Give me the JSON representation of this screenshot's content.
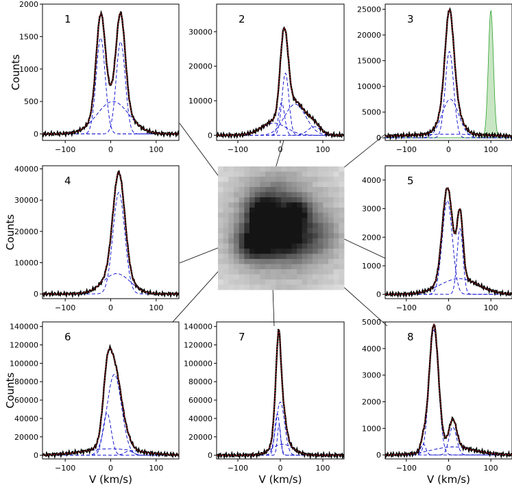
{
  "chart_data": [
    {
      "type": "line",
      "panel": "1",
      "ylabel": "Counts",
      "xlabel": "",
      "xlim": [
        -150,
        150
      ],
      "ylim": [
        -100,
        2000
      ],
      "xticks": [
        "-100",
        "0",
        "100"
      ],
      "yticks": [
        "0",
        "500",
        "1000",
        "1500",
        "2000"
      ],
      "components": [
        {
          "name": "",
          "type": "gaussian",
          "amplitude": 1480,
          "center": -22,
          "sigma": 10
        },
        {
          "name": "",
          "type": "gaussian",
          "amplitude": 1420,
          "center": 22,
          "sigma": 10
        },
        {
          "name": "",
          "type": "gaussian",
          "amplitude": 500,
          "center": 5,
          "sigma": 35
        }
      ]
    },
    {
      "type": "line",
      "panel": "2",
      "ylabel": "",
      "xlabel": "",
      "xlim": [
        -150,
        150
      ],
      "ylim": [
        -1500,
        38000
      ],
      "xticks": [
        "-100",
        "0",
        "100"
      ],
      "yticks": [
        "0",
        "10000",
        "20000",
        "30000"
      ],
      "components": [
        {
          "name": "",
          "type": "gaussian",
          "amplitude": 18000,
          "center": 12,
          "sigma": 8
        },
        {
          "name": "",
          "type": "gaussian",
          "amplitude": 9500,
          "center": 3,
          "sigma": 7
        },
        {
          "name": "",
          "type": "gaussian",
          "amplitude": 9000,
          "center": 35,
          "sigma": 25
        },
        {
          "name": "",
          "type": "gaussian",
          "amplitude": 3500,
          "center": -15,
          "sigma": 30
        },
        {
          "name": "",
          "type": "gaussian",
          "amplitude": 2500,
          "center": 80,
          "sigma": 15
        }
      ]
    },
    {
      "type": "line",
      "panel": "3",
      "ylabel": "",
      "xlabel": "",
      "xlim": [
        -150,
        150
      ],
      "ylim": [
        -500,
        26000
      ],
      "xticks": [
        "-100",
        "0",
        "100"
      ],
      "yticks": [
        "0",
        "5000",
        "10000",
        "15000",
        "20000",
        "25000"
      ],
      "components": [
        {
          "name": "",
          "type": "gaussian",
          "amplitude": 16800,
          "center": 2,
          "sigma": 10
        },
        {
          "name": "",
          "type": "gaussian",
          "amplitude": 7500,
          "center": 4,
          "sigma": 20
        },
        {
          "name": "",
          "type": "gaussian",
          "amplitude": 700,
          "center": 0,
          "sigma": 120
        }
      ],
      "instrument_profile": {
        "amplitude": 24800,
        "center": 100,
        "sigma": 6,
        "color": "#2ca02c"
      }
    },
    {
      "type": "line",
      "panel": "4",
      "ylabel": "Counts",
      "xlabel": "",
      "xlim": [
        -150,
        150
      ],
      "ylim": [
        -1500,
        41000
      ],
      "xticks": [
        "-100",
        "0",
        "100"
      ],
      "yticks": [
        "0",
        "10000",
        "20000",
        "30000",
        "40000"
      ],
      "components": [
        {
          "name": "",
          "type": "gaussian",
          "amplitude": 32500,
          "center": 18,
          "sigma": 13
        },
        {
          "name": "",
          "type": "gaussian",
          "amplitude": 6500,
          "center": 13,
          "sigma": 30
        }
      ]
    },
    {
      "type": "line",
      "panel": "5",
      "ylabel": "",
      "xlabel": "",
      "xlim": [
        -150,
        150
      ],
      "ylim": [
        -150,
        4500
      ],
      "xticks": [
        "-100",
        "0",
        "100"
      ],
      "yticks": [
        "0",
        "1000",
        "2000",
        "3000",
        "4000"
      ],
      "components": [
        {
          "name": "",
          "type": "gaussian",
          "amplitude": 3280,
          "center": -3,
          "sigma": 12
        },
        {
          "name": "",
          "type": "gaussian",
          "amplitude": 2300,
          "center": 27,
          "sigma": 7
        },
        {
          "name": "",
          "type": "gaussian",
          "amplitude": 550,
          "center": 25,
          "sigma": 45
        }
      ]
    },
    {
      "type": "line",
      "panel": "6",
      "ylabel": "Counts",
      "xlabel": "V (km/s)",
      "xlim": [
        -150,
        150
      ],
      "ylim": [
        -4000,
        145000
      ],
      "xticks": [
        "-100",
        "0",
        "100"
      ],
      "yticks": [
        "0",
        "20000",
        "40000",
        "60000",
        "80000",
        "100000",
        "120000",
        "140000"
      ],
      "components": [
        {
          "name": "",
          "type": "gaussian",
          "amplitude": 88000,
          "center": 8,
          "sigma": 16
        },
        {
          "name": "",
          "type": "gaussian",
          "amplitude": 46000,
          "center": -8,
          "sigma": 9
        },
        {
          "name": "",
          "type": "gaussian",
          "amplitude": 7000,
          "center": 0,
          "sigma": 60
        },
        {
          "name": "",
          "type": "gaussian",
          "amplitude": 4500,
          "center": 40,
          "sigma": 10
        }
      ]
    },
    {
      "type": "line",
      "panel": "7",
      "ylabel": "",
      "xlabel": "V (km/s)",
      "xlim": [
        -150,
        150
      ],
      "ylim": [
        -4000,
        145000
      ],
      "xticks": [
        "-100",
        "0",
        "100"
      ],
      "yticks": [
        "0",
        "20000",
        "40000",
        "60000",
        "80000",
        "100000",
        "120000",
        "140000"
      ],
      "components": [
        {
          "name": "",
          "type": "gaussian",
          "amplitude": 58000,
          "center": 0,
          "sigma": 10
        },
        {
          "name": "",
          "type": "gaussian",
          "amplitude": 45000,
          "center": -7,
          "sigma": 6
        },
        {
          "name": "",
          "type": "gaussian",
          "amplitude": 33000,
          "center": -3,
          "sigma": 4
        },
        {
          "name": "",
          "type": "gaussian",
          "amplitude": 12000,
          "center": 5,
          "sigma": 25
        }
      ]
    },
    {
      "type": "line",
      "panel": "8",
      "ylabel": "",
      "xlabel": "V (km/s)",
      "xlim": [
        -150,
        150
      ],
      "ylim": [
        -150,
        5000
      ],
      "xticks": [
        "-100",
        "0",
        "100"
      ],
      "yticks": [
        "0",
        "1000",
        "2000",
        "3000",
        "4000",
        "5000"
      ],
      "components": [
        {
          "name": "",
          "type": "gaussian",
          "amplitude": 4700,
          "center": -35,
          "sigma": 11
        },
        {
          "name": "",
          "type": "gaussian",
          "amplitude": 1050,
          "center": 10,
          "sigma": 9
        },
        {
          "name": "",
          "type": "gaussian",
          "amplitude": 420,
          "center": -60,
          "sigma": 6
        },
        {
          "name": "",
          "type": "gaussian",
          "amplitude": 300,
          "center": 10,
          "sigma": 50
        }
      ]
    }
  ],
  "center_image": {
    "type": "heatmap",
    "colormap": "grayscale",
    "grid_size": [
      24,
      24
    ],
    "blobs": [
      {
        "x": 0.35,
        "y": 0.38,
        "sigma": 0.09,
        "amplitude": 0.9
      },
      {
        "x": 0.63,
        "y": 0.37,
        "sigma": 0.07,
        "amplitude": 0.75
      },
      {
        "x": 0.28,
        "y": 0.62,
        "sigma": 0.1,
        "amplitude": 1.0
      },
      {
        "x": 0.45,
        "y": 0.58,
        "sigma": 0.1,
        "amplitude": 0.7
      },
      {
        "x": 0.6,
        "y": 0.6,
        "sigma": 0.12,
        "amplitude": 0.55
      },
      {
        "x": 0.45,
        "y": 0.3,
        "sigma": 0.15,
        "amplitude": 0.45
      },
      {
        "x": 0.5,
        "y": 0.5,
        "sigma": 0.35,
        "amplitude": 0.55
      },
      {
        "x": 0.8,
        "y": 0.55,
        "sigma": 0.12,
        "amplitude": 0.35
      }
    ],
    "connector_color": "#000000"
  },
  "colors": {
    "observed": "#000000",
    "model": "#d62728",
    "components": "#0000cc",
    "instrument_fill": "#c8e6c3",
    "instrument_edge": "#2ca02c"
  }
}
